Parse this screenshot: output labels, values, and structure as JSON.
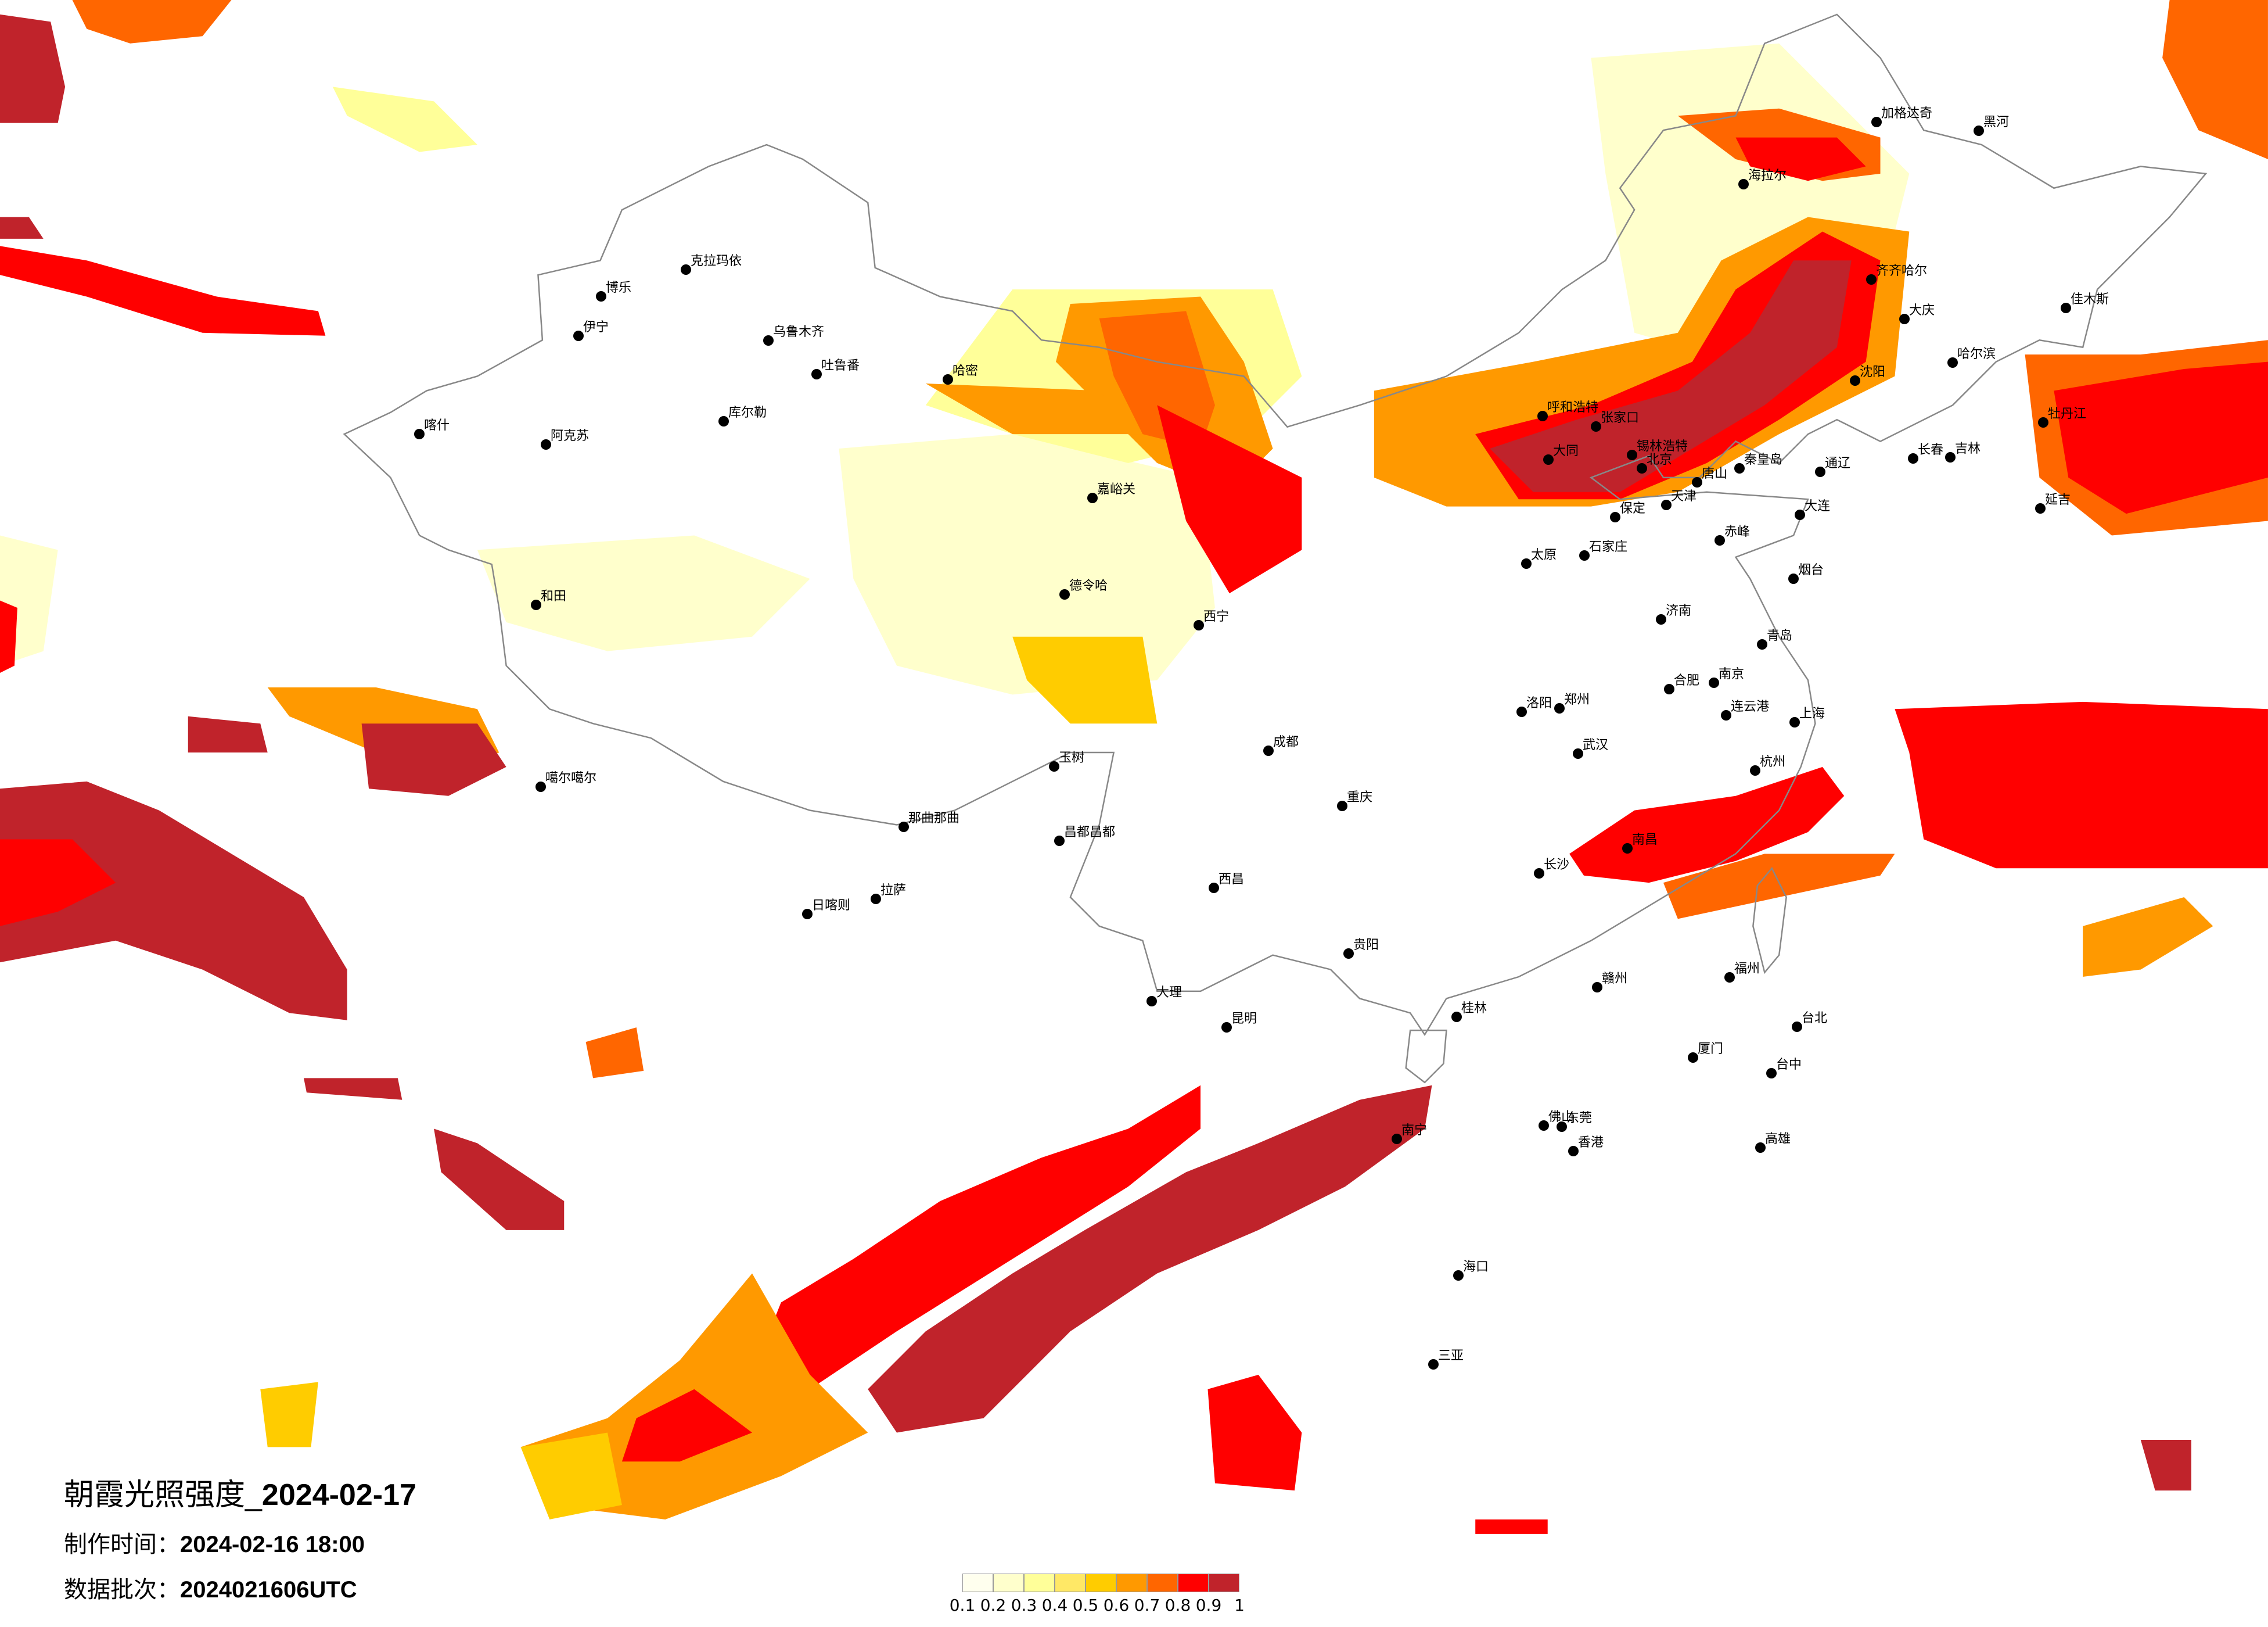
{
  "title": {
    "main": "朝霞光照强度_",
    "date": "2024-02-17"
  },
  "production_time": {
    "label": "制作时间：",
    "value": "2024-02-16 18:00"
  },
  "data_batch": {
    "label": "数据批次：",
    "value": "2024021606UTC"
  },
  "legend": {
    "colors": [
      "#FFFFEE",
      "#FFFFCC",
      "#FFFF99",
      "#FFE866",
      "#FFCC00",
      "#FF9900",
      "#FF6600",
      "#FF0000",
      "#C0232B"
    ],
    "labels": [
      "0.1",
      "0.2",
      "0.3",
      "0.4",
      "0.5",
      "0.6",
      "0.7",
      "0.8",
      "0.9",
      "1"
    ]
  },
  "cities": [
    "北京",
    "天津",
    "石家庄",
    "太原",
    "济南",
    "郑州",
    "青岛",
    "大连",
    "沈阳",
    "呼和浩特",
    "大同",
    "张家口",
    "唐山",
    "秦皇岛",
    "保定",
    "洛阳",
    "烟台",
    "连云港",
    "哈尔滨",
    "长春",
    "吉林",
    "齐齐哈尔",
    "海拉尔",
    "黑河",
    "加格达奇",
    "大庆",
    "牡丹江",
    "佳木斯",
    "通辽",
    "赤峰",
    "锡林浩特",
    "延吉",
    "乌鲁木齐",
    "克拉玛依",
    "伊宁",
    "阿克苏",
    "和田",
    "喀什",
    "哈密",
    "库尔勒",
    "吐鲁番",
    "拉萨",
    "日喀则",
    "那曲那曲",
    "德令哈",
    "玉树",
    "昌都昌都",
    "西宁",
    "嘉峪关",
    "噶尔噶尔",
    "博乐",
    "成都",
    "重庆",
    "昆明",
    "贵阳",
    "南宁",
    "佛山",
    "武汉",
    "长沙",
    "南昌",
    "杭州",
    "上海",
    "南京",
    "合肥",
    "福州",
    "厦门",
    "台北",
    "海口",
    "三亚",
    "香港",
    "东莞",
    "桂林",
    "赣州",
    "西昌",
    "大理",
    "台中",
    "高雄"
  ]
}
